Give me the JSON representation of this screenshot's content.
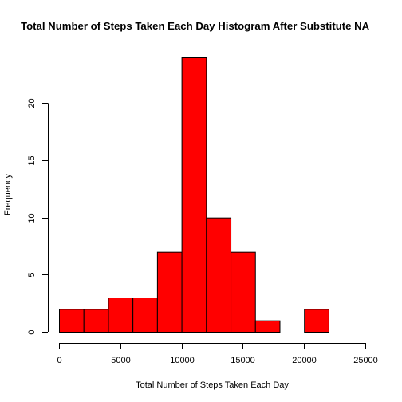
{
  "chart_data": {
    "type": "bar",
    "title": "Total Number of Steps Taken Each Day Histogram After Substitute NA",
    "xlabel": "Total Number of Steps Taken Each Day",
    "ylabel": "Frequency",
    "bin_edges": [
      0,
      2000,
      4000,
      6000,
      8000,
      10000,
      12000,
      14000,
      16000,
      18000,
      20000,
      22000
    ],
    "values": [
      2,
      2,
      3,
      3,
      7,
      24,
      10,
      7,
      1,
      0,
      2
    ],
    "xlim": [
      0,
      25000
    ],
    "ylim": [
      0,
      24
    ],
    "x_ticks": [
      0,
      5000,
      10000,
      15000,
      20000,
      25000
    ],
    "x_tick_labels": [
      "0",
      "5000",
      "10000",
      "15000",
      "20000",
      "25000"
    ],
    "y_ticks": [
      0,
      5,
      10,
      15,
      20
    ],
    "y_tick_labels": [
      "0",
      "5",
      "10",
      "15",
      "20"
    ],
    "bar_color": "#ff0000",
    "edge_color": "#000000",
    "grid": false,
    "legend": "none"
  }
}
